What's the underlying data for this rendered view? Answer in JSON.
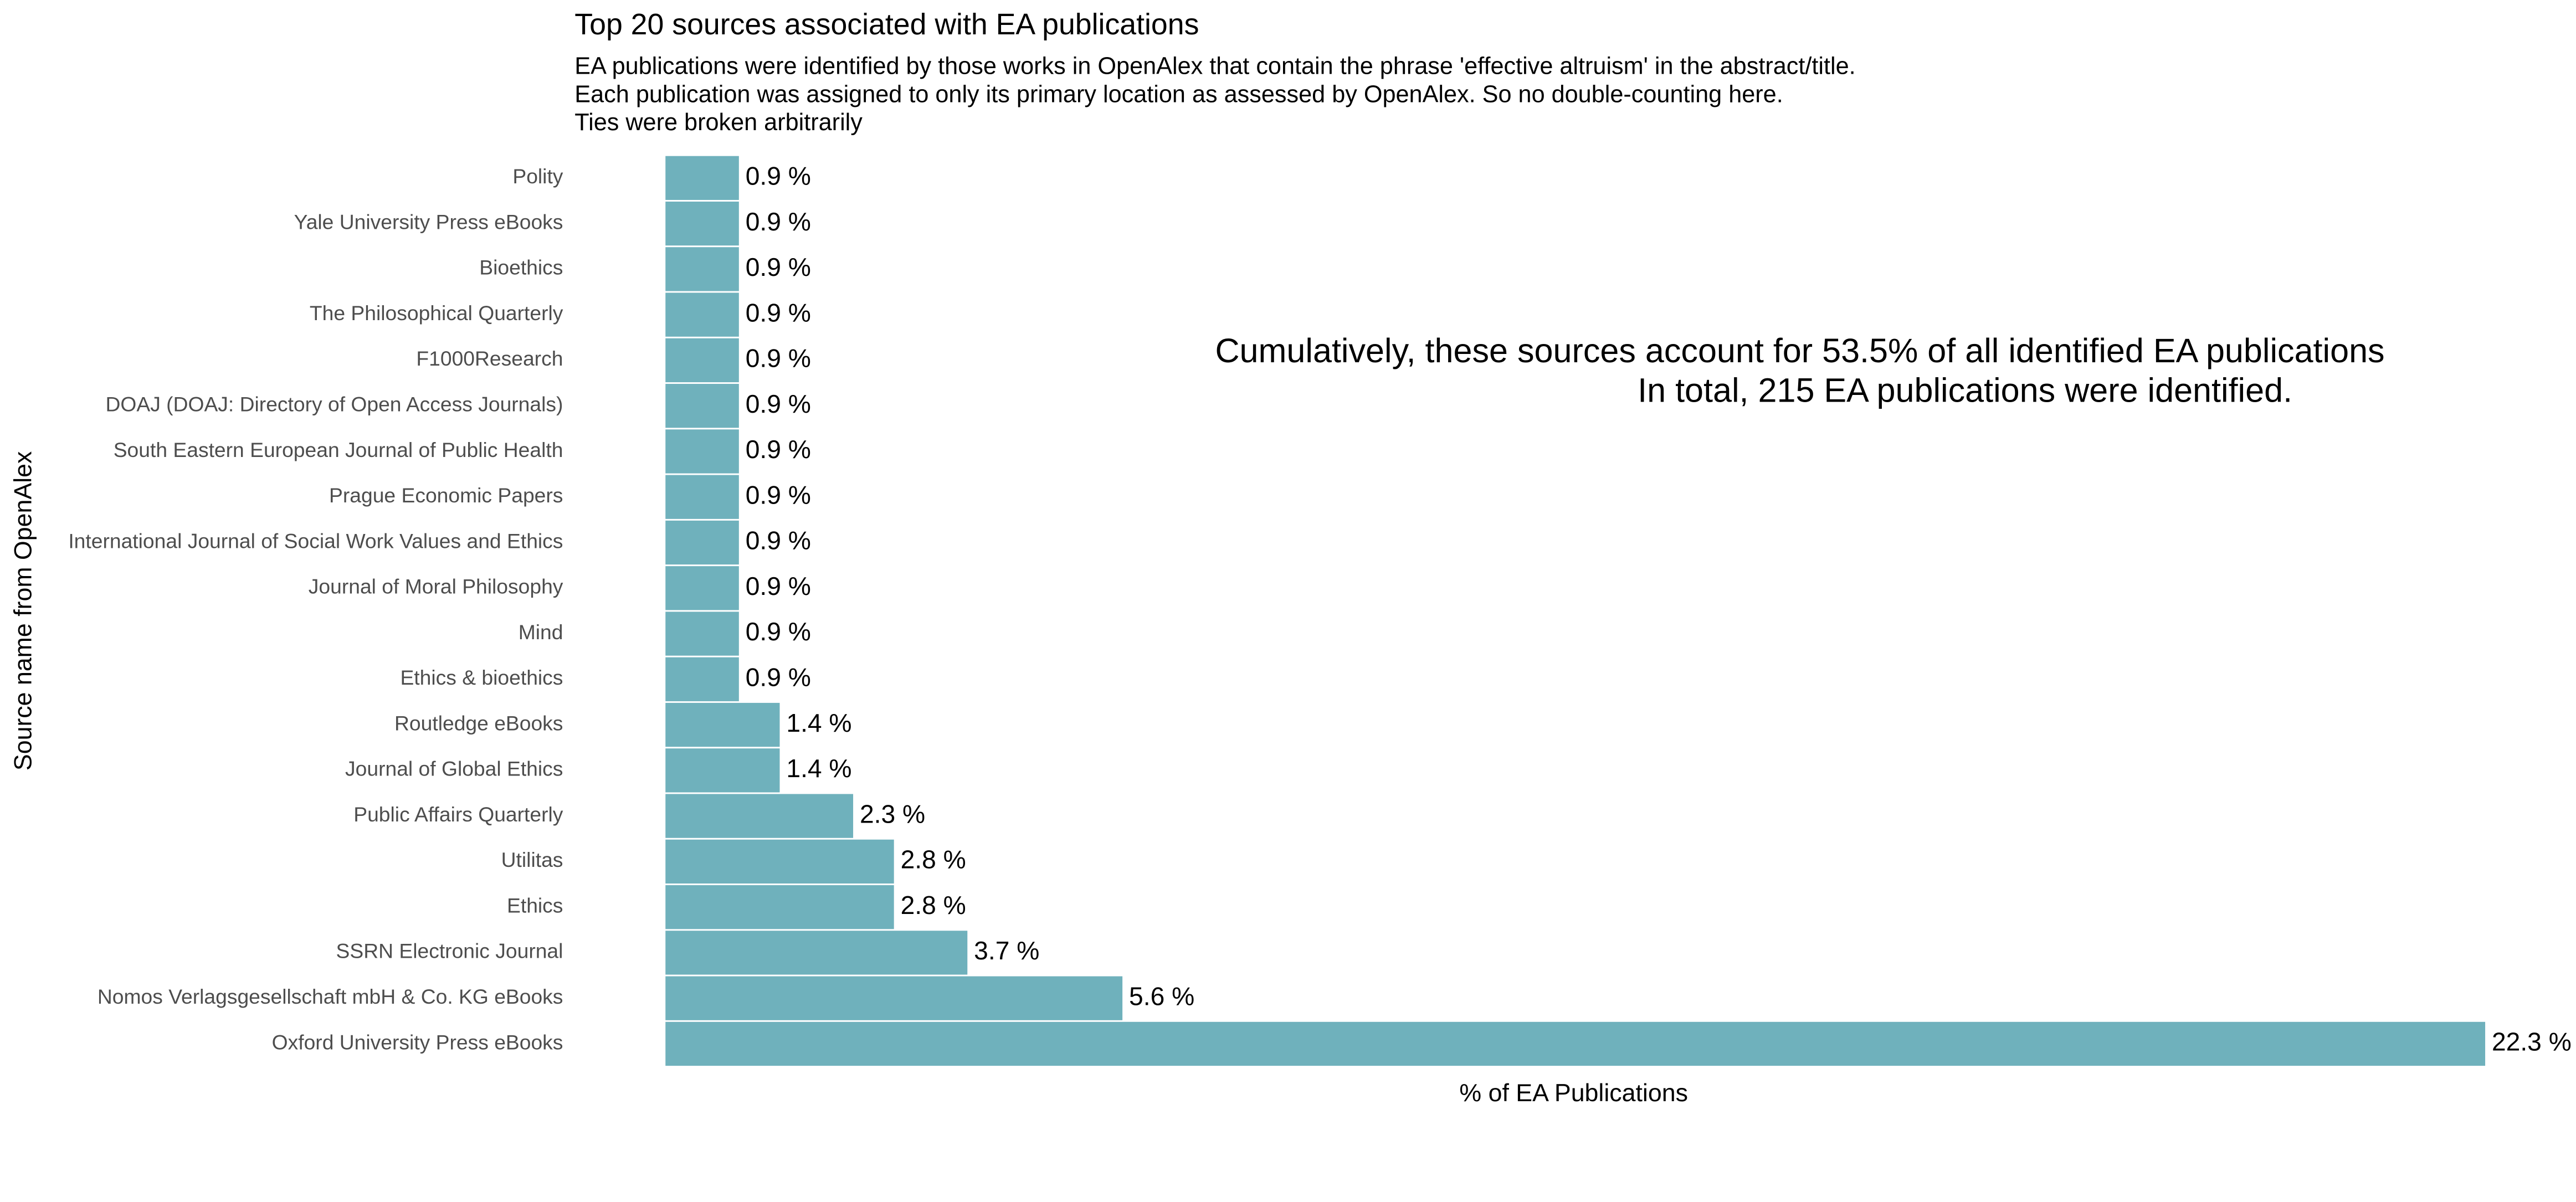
{
  "chart_data": {
    "type": "bar",
    "orientation": "horizontal",
    "title": "Top 20 sources associated with EA publications",
    "subtitle": [
      "EA publications were identified by those works in OpenAlex that contain the phrase 'effective altruism' in the abstract/title.",
      "Each publication was assigned to only its primary location as assessed by OpenAlex. So no double-counting here.",
      "Ties were broken arbitrarily"
    ],
    "annotation": [
      "Cumulatively, these sources account for 53.5% of all identified EA publications",
      "In total, 215 EA publications were identified."
    ],
    "x_label": "% of EA Publications",
    "y_label": "Source name from OpenAlex",
    "categories": [
      "Polity",
      "Yale University Press eBooks",
      "Bioethics",
      "The Philosophical Quarterly",
      "F1000Research",
      "DOAJ (DOAJ: Directory of Open Access Journals)",
      "South Eastern European Journal of Public Health",
      "Prague Economic Papers",
      "International Journal of Social Work Values and Ethics",
      "Journal of Moral Philosophy",
      "Mind",
      "Ethics & bioethics",
      "Routledge eBooks",
      "Journal of Global Ethics",
      "Public Affairs Quarterly",
      "Utilitas",
      "Ethics",
      "SSRN Electronic Journal",
      "Nomos Verlagsgesellschaft mbH & Co. KG eBooks",
      "Oxford University Press eBooks"
    ],
    "values": [
      0.9,
      0.9,
      0.9,
      0.9,
      0.9,
      0.9,
      0.9,
      0.9,
      0.9,
      0.9,
      0.9,
      0.9,
      1.4,
      1.4,
      2.3,
      2.8,
      2.8,
      3.7,
      5.6,
      22.3
    ],
    "value_labels": [
      "0.9 %",
      "0.9 %",
      "0.9 %",
      "0.9 %",
      "0.9 %",
      "0.9 %",
      "0.9 %",
      "0.9 %",
      "0.9 %",
      "0.9 %",
      "0.9 %",
      "0.9 %",
      "1.4 %",
      "1.4 %",
      "2.3 %",
      "2.8 %",
      "2.8 %",
      "3.7 %",
      "5.6 %",
      "22.3 %"
    ],
    "color": "#6fb1bc",
    "xlim": [
      0,
      22.3
    ],
    "grid": false
  }
}
